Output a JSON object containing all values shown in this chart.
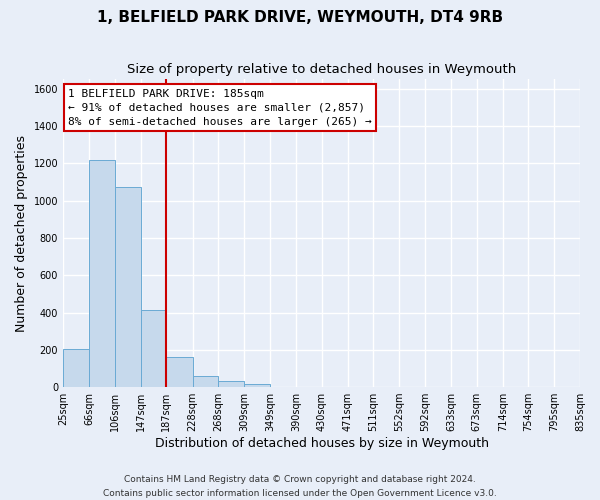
{
  "title": "1, BELFIELD PARK DRIVE, WEYMOUTH, DT4 9RB",
  "subtitle": "Size of property relative to detached houses in Weymouth",
  "xlabel": "Distribution of detached houses by size in Weymouth",
  "ylabel": "Number of detached properties",
  "footer_line1": "Contains HM Land Registry data © Crown copyright and database right 2024.",
  "footer_line2": "Contains public sector information licensed under the Open Government Licence v3.0.",
  "bar_edges": [
    25,
    66,
    106,
    147,
    187,
    228,
    268,
    309,
    349,
    390,
    430,
    471,
    511,
    552,
    592,
    633,
    673,
    714,
    754,
    795,
    835
  ],
  "bar_heights": [
    205,
    1220,
    1075,
    415,
    160,
    57,
    30,
    18,
    0,
    0,
    0,
    0,
    0,
    0,
    0,
    0,
    0,
    0,
    0,
    0
  ],
  "bar_color": "#c6d9ec",
  "bar_edgecolor": "#6aaad4",
  "marker_x": 187,
  "marker_color": "#cc0000",
  "annotation_title": "1 BELFIELD PARK DRIVE: 185sqm",
  "annotation_line1": "← 91% of detached houses are smaller (2,857)",
  "annotation_line2": "8% of semi-detached houses are larger (265) →",
  "annotation_box_color": "#ffffff",
  "annotation_box_edgecolor": "#cc0000",
  "ylim": [
    0,
    1650
  ],
  "yticks": [
    0,
    200,
    400,
    600,
    800,
    1000,
    1200,
    1400,
    1600
  ],
  "xlim_left": 25,
  "xlim_right": 835,
  "tick_labels": [
    "25sqm",
    "66sqm",
    "106sqm",
    "147sqm",
    "187sqm",
    "228sqm",
    "268sqm",
    "309sqm",
    "349sqm",
    "390sqm",
    "430sqm",
    "471sqm",
    "511sqm",
    "552sqm",
    "592sqm",
    "633sqm",
    "673sqm",
    "714sqm",
    "754sqm",
    "795sqm",
    "835sqm"
  ],
  "background_color": "#e8eef8",
  "grid_color": "#ffffff",
  "title_fontsize": 11,
  "subtitle_fontsize": 9.5,
  "axis_label_fontsize": 9,
  "tick_fontsize": 7,
  "footer_fontsize": 6.5,
  "annotation_fontsize": 8
}
